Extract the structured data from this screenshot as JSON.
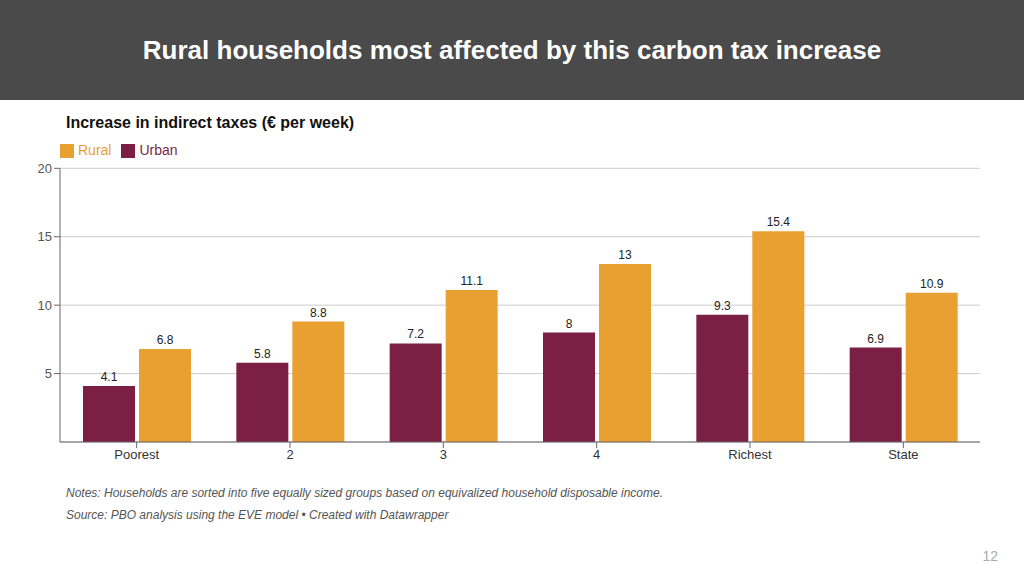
{
  "chart_data": {
    "type": "bar",
    "title": "Rural households most affected by this carbon tax increase",
    "ylabel": "Increase in indirect taxes (€ per week)",
    "categories": [
      "Poorest",
      "2",
      "3",
      "4",
      "Richest",
      "State"
    ],
    "series": [
      {
        "name": "Urban",
        "color": "#7B1F45",
        "values": [
          4.1,
          5.8,
          7.2,
          8.0,
          9.3,
          6.9
        ]
      },
      {
        "name": "Rural",
        "color": "#E8A030",
        "values": [
          6.8,
          8.8,
          11.1,
          13.0,
          15.4,
          10.9
        ]
      }
    ],
    "ylim": [
      0,
      20
    ],
    "yticks": [
      5,
      10,
      15,
      20
    ],
    "grid": true,
    "legend": "top-left",
    "data_labels": true,
    "annotations": [
      "Notes: Households are sorted into five equally sized groups based on equivalized household disposable income.",
      "Source: PBO analysis using the EVE model • Created with Datawrapper",
      "12"
    ]
  }
}
